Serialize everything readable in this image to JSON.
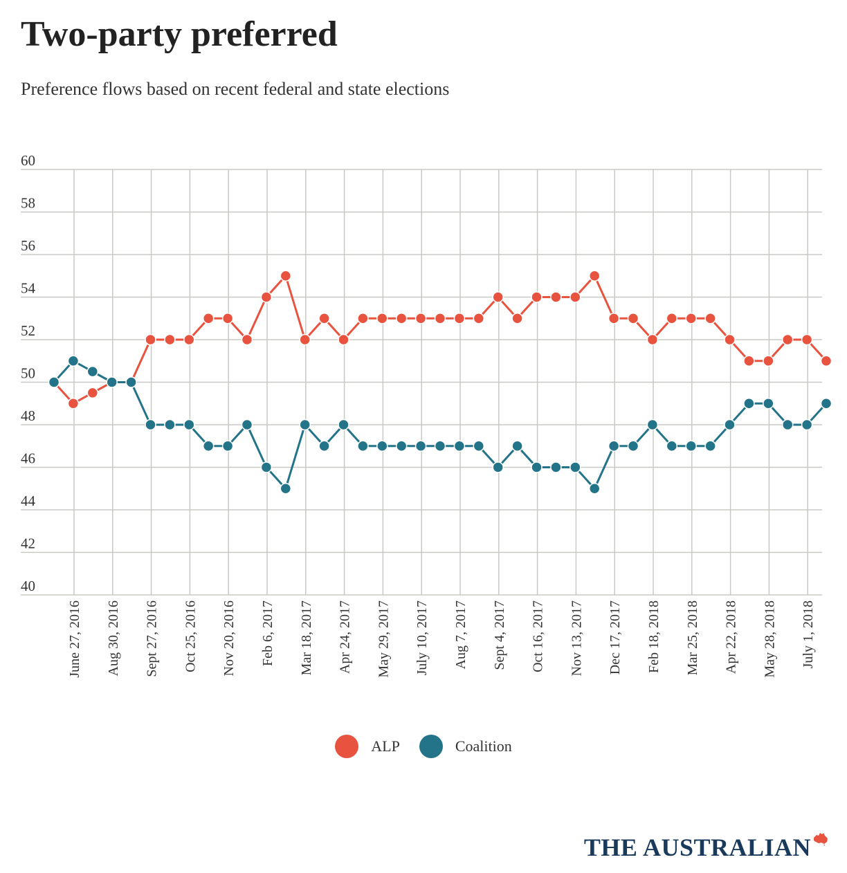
{
  "header": {
    "title": "Two-party preferred",
    "subtitle": "Preference flows based on recent federal and state elections"
  },
  "brand": {
    "name": "THE AUSTRALIAN"
  },
  "colors": {
    "alp": "#e8533f",
    "coalition": "#237389",
    "grid": "#c8c8c4",
    "axis_text": "#333333"
  },
  "legend": {
    "alp_label": "ALP",
    "coalition_label": "Coalition"
  },
  "chart_data": {
    "type": "line",
    "title": "Two-party preferred",
    "subtitle": "Preference flows based on recent federal and state elections",
    "xlabel": "",
    "ylabel": "",
    "ylim": [
      40,
      60
    ],
    "yticks": [
      40,
      42,
      44,
      46,
      48,
      50,
      52,
      54,
      56,
      58,
      60
    ],
    "grid": true,
    "legend_position": "bottom-center",
    "x_tick_labels": [
      "June 27, 2016",
      "Aug 30, 2016",
      "Sept 27, 2016",
      "Oct 25, 2016",
      "Nov 20, 2016",
      "Feb 6, 2017",
      "Mar 18, 2017",
      "Apr 24, 2017",
      "May 29, 2017",
      "July 10, 2017",
      "Aug 7, 2017",
      "Sept 4, 2017",
      "Oct 16, 2017",
      "Nov 13, 2017",
      "Dec 17, 2017",
      "Feb 18, 2018",
      "Mar 25, 2018",
      "Apr 22, 2018",
      "May 28, 2018",
      "July 1, 2018"
    ],
    "series": [
      {
        "name": "ALP",
        "values": [
          50,
          49,
          49.5,
          50,
          50,
          52,
          52,
          52,
          53,
          53,
          52,
          54,
          55,
          52,
          53,
          52,
          53,
          53,
          53,
          53,
          53,
          53,
          53,
          54,
          53,
          54,
          54,
          54,
          55,
          53,
          53,
          52,
          53,
          53,
          53,
          52,
          51,
          51,
          52,
          52,
          51
        ]
      },
      {
        "name": "Coalition",
        "values": [
          50,
          51,
          50.5,
          50,
          50,
          48,
          48,
          48,
          47,
          47,
          48,
          46,
          45,
          48,
          47,
          48,
          47,
          47,
          47,
          47,
          47,
          47,
          47,
          46,
          47,
          46,
          46,
          46,
          45,
          47,
          47,
          48,
          47,
          47,
          47,
          48,
          49,
          49,
          48,
          48,
          49
        ]
      }
    ]
  }
}
